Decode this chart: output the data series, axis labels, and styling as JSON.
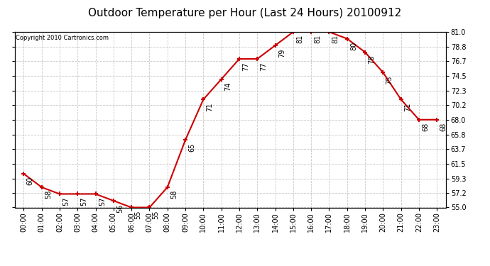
{
  "title": "Outdoor Temperature per Hour (Last 24 Hours) 20100912",
  "copyright": "Copyright 2010 Cartronics.com",
  "hours": [
    "00:00",
    "01:00",
    "02:00",
    "03:00",
    "04:00",
    "05:00",
    "06:00",
    "07:00",
    "08:00",
    "09:00",
    "10:00",
    "11:00",
    "12:00",
    "13:00",
    "14:00",
    "15:00",
    "16:00",
    "17:00",
    "18:00",
    "19:00",
    "20:00",
    "21:00",
    "22:00",
    "23:00"
  ],
  "temps": [
    60,
    58,
    57,
    57,
    57,
    56,
    55,
    55,
    58,
    65,
    71,
    74,
    77,
    77,
    79,
    81,
    81,
    81,
    80,
    78,
    75,
    71,
    68,
    68
  ],
  "ylim": [
    55.0,
    81.0
  ],
  "ytick_vals": [
    55.0,
    57.2,
    59.3,
    61.5,
    63.7,
    65.8,
    68.0,
    70.2,
    72.3,
    74.5,
    76.7,
    78.8,
    81.0
  ],
  "ytick_labels": [
    "55.0",
    "57.2",
    "59.3",
    "61.5",
    "63.7",
    "65.8",
    "68.0",
    "70.2",
    "72.3",
    "74.5",
    "76.7",
    "78.8",
    "81.0"
  ],
  "line_color": "#cc0000",
  "marker": "+",
  "bg_color": "#ffffff",
  "grid_color": "#c8c8c8",
  "title_fontsize": 11,
  "copyright_fontsize": 6,
  "tick_fontsize": 7,
  "annot_fontsize": 7
}
